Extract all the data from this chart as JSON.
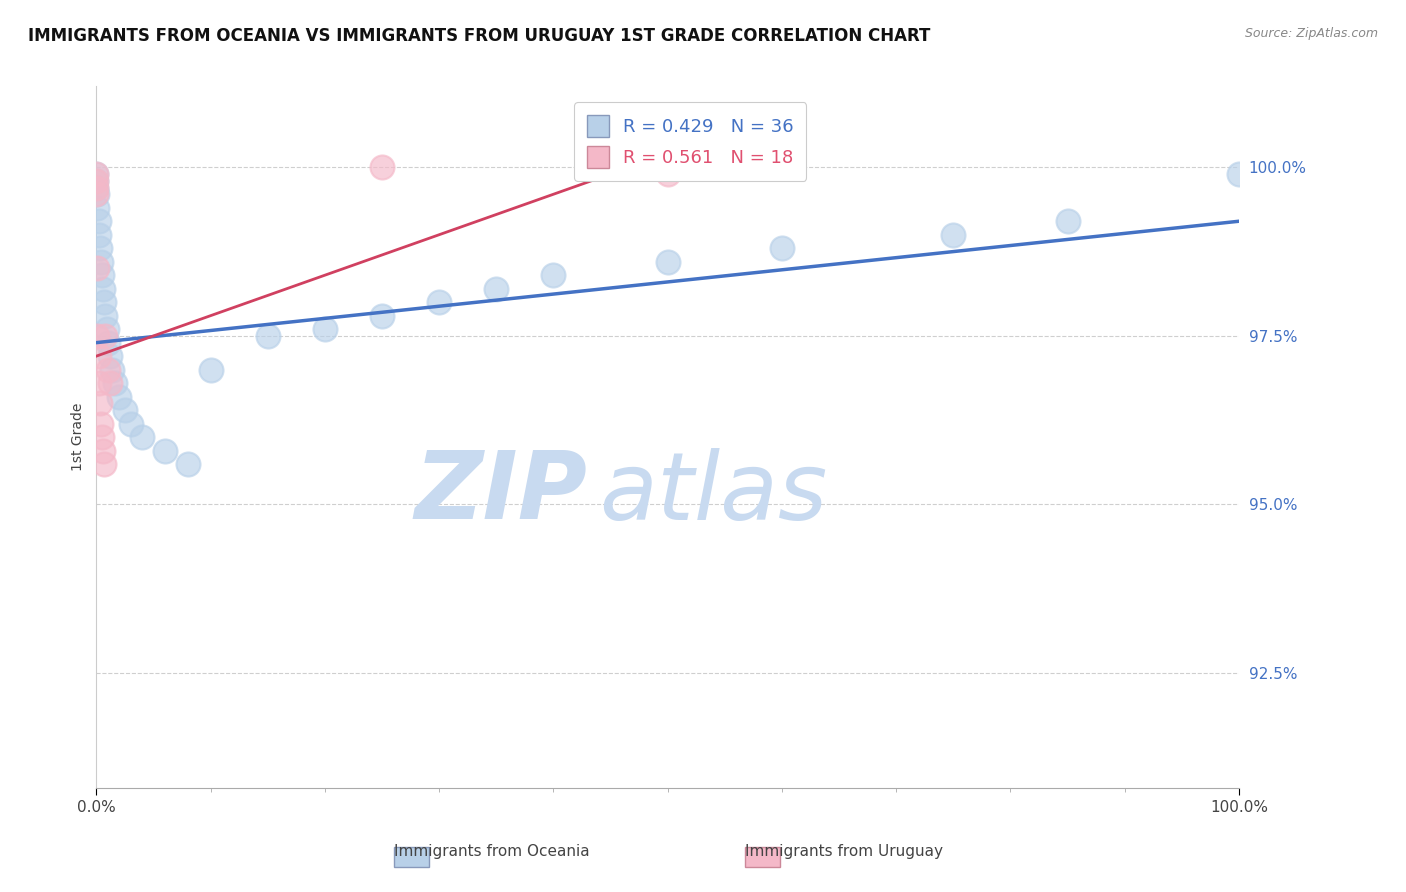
{
  "title": "IMMIGRANTS FROM OCEANIA VS IMMIGRANTS FROM URUGUAY 1ST GRADE CORRELATION CHART",
  "source_text": "Source: ZipAtlas.com",
  "ylabel": "1st Grade",
  "xlim": [
    0.0,
    1.0
  ],
  "ylim": [
    0.908,
    1.012
  ],
  "yticks": [
    0.925,
    0.95,
    0.975,
    1.0
  ],
  "ytick_labels": [
    "92.5%",
    "95.0%",
    "97.5%",
    "100.0%"
  ],
  "xtick_labels": [
    "0.0%",
    "100.0%"
  ],
  "legend_entries": [
    {
      "label": "R = 0.429   N = 36",
      "color": "#b8d0e8",
      "lcolor": "#4472c4"
    },
    {
      "label": "R = 0.561   N = 18",
      "color": "#f4b8c8",
      "lcolor": "#e05070"
    }
  ],
  "oceania_x": [
    0.0,
    0.0,
    0.0,
    0.001,
    0.001,
    0.002,
    0.002,
    0.003,
    0.004,
    0.005,
    0.006,
    0.007,
    0.008,
    0.009,
    0.01,
    0.012,
    0.014,
    0.016,
    0.02,
    0.025,
    0.03,
    0.04,
    0.06,
    0.08,
    0.1,
    0.15,
    0.2,
    0.25,
    0.3,
    0.35,
    0.4,
    0.5,
    0.6,
    0.75,
    0.85,
    1.0
  ],
  "oceania_y": [
    0.999,
    0.998,
    0.997,
    0.996,
    0.994,
    0.992,
    0.99,
    0.988,
    0.986,
    0.984,
    0.982,
    0.98,
    0.978,
    0.976,
    0.974,
    0.972,
    0.97,
    0.968,
    0.966,
    0.964,
    0.962,
    0.96,
    0.958,
    0.956,
    0.97,
    0.975,
    0.976,
    0.978,
    0.98,
    0.982,
    0.984,
    0.986,
    0.988,
    0.99,
    0.992,
    0.999
  ],
  "uruguay_x": [
    0.0,
    0.0,
    0.0,
    0.0,
    0.001,
    0.001,
    0.002,
    0.002,
    0.003,
    0.004,
    0.005,
    0.006,
    0.007,
    0.008,
    0.01,
    0.012,
    0.25,
    0.5
  ],
  "uruguay_y": [
    0.999,
    0.998,
    0.997,
    0.996,
    0.985,
    0.975,
    0.972,
    0.968,
    0.965,
    0.962,
    0.96,
    0.958,
    0.956,
    0.975,
    0.97,
    0.968,
    1.0,
    0.999
  ],
  "oceania_color": "#b8d0e8",
  "uruguay_color": "#f4b8c8",
  "trend_oceania_color": "#4472c4",
  "trend_uruguay_color": "#d04060",
  "background_color": "#ffffff",
  "watermark_zip": "ZIP",
  "watermark_atlas": "atlas",
  "watermark_color": "#c8daf0",
  "title_fontsize": 12,
  "axis_label_color": "#444444",
  "tick_label_color": "#4472c4",
  "grid_color": "#bbbbbb",
  "trend_oceania_start_x": 0.0,
  "trend_oceania_start_y": 0.974,
  "trend_oceania_end_x": 1.0,
  "trend_oceania_end_y": 0.992,
  "trend_uruguay_start_x": 0.0,
  "trend_uruguay_start_y": 0.972,
  "trend_uruguay_end_x": 0.5,
  "trend_uruguay_end_y": 1.002
}
